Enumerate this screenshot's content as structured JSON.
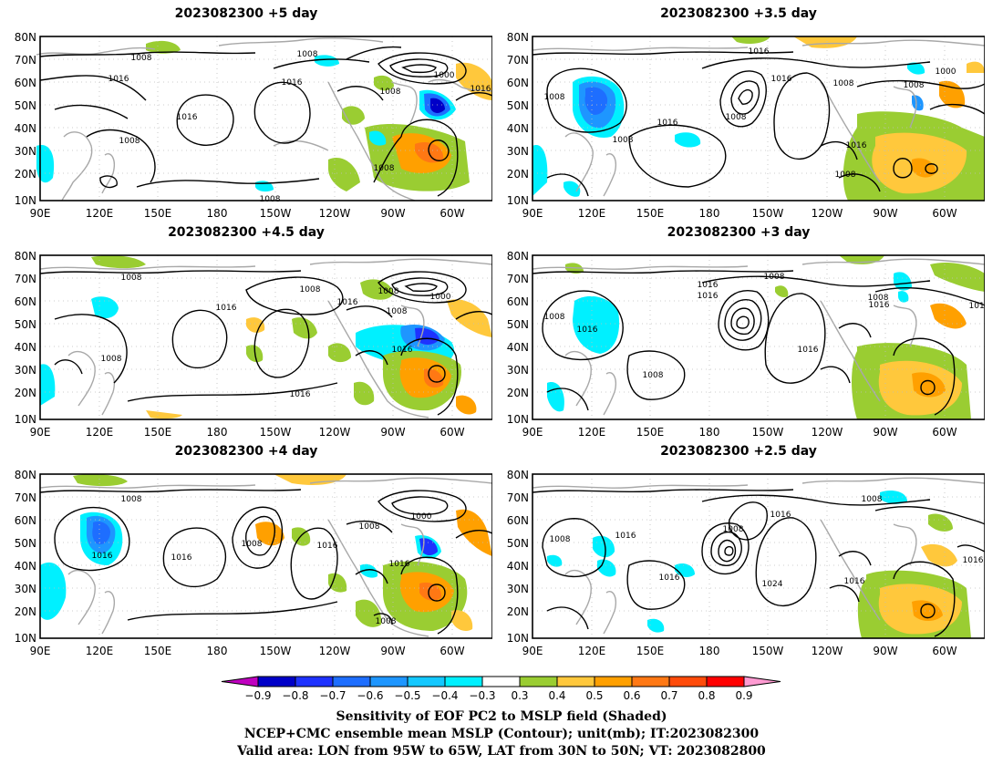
{
  "panels": [
    {
      "title": "2023082300  +5 day"
    },
    {
      "title": "2023082300  +3.5 day"
    },
    {
      "title": "2023082300  +4.5 day"
    },
    {
      "title": "2023082300  +3 day"
    },
    {
      "title": "2023082300  +4 day"
    },
    {
      "title": "2023082300  +2.5 day"
    }
  ],
  "axes": {
    "lat_labels": [
      "80N",
      "70N",
      "60N",
      "50N",
      "40N",
      "30N",
      "20N",
      "10N"
    ],
    "lon_labels": [
      "90E",
      "120E",
      "150E",
      "180",
      "150W",
      "120W",
      "90W",
      "60W"
    ]
  },
  "contour_labels": {
    "p0": [
      "1008",
      "1016",
      "1016",
      "1016",
      "1008",
      "1008",
      "1000",
      "1016",
      "1008",
      "1008",
      "1008"
    ],
    "p1": [
      "1016",
      "1000",
      "1008",
      "1016",
      "1008",
      "1008",
      "1008",
      "1016",
      "1016",
      "1008",
      "1008"
    ],
    "p2": [
      "1008",
      "1008",
      "1016",
      "1008",
      "1000",
      "1008",
      "1016",
      "1016",
      "1016",
      "1008"
    ],
    "p3": [
      "1008",
      "1016",
      "1016",
      "1008",
      "1016",
      "1016",
      "1008",
      "1016",
      "101",
      "1016",
      "1008"
    ],
    "p4": [
      "1008",
      "1000",
      "1016",
      "1016",
      "1016",
      "1008",
      "1008",
      "1016",
      "1016",
      "1008",
      "1008"
    ],
    "p5": [
      "1008",
      "1008",
      "1016",
      "1016",
      "1008",
      "1016",
      "1016",
      "1024",
      "1016",
      "1016",
      "1016"
    ]
  },
  "colorbar": {
    "tick_labels": [
      "−0.9",
      "−0.8",
      "−0.7",
      "−0.6",
      "−0.5",
      "−0.4",
      "−0.3",
      "0.3",
      "0.4",
      "0.5",
      "0.6",
      "0.7",
      "0.8",
      "0.9"
    ],
    "colors": [
      "#c000c0",
      "#0000c8",
      "#1e32ff",
      "#1e6eff",
      "#1e96ff",
      "#14c8ff",
      "#00f0ff",
      "#ffffff",
      "#9acd32",
      "#ffc83c",
      "#ffa000",
      "#ff7814",
      "#ff4b0a",
      "#ff0000",
      "#ff9bd2"
    ]
  },
  "caption": {
    "line1": "Sensitivity of EOF PC2 to MSLP field (Shaded)",
    "line2": "NCEP+CMC ensemble mean MSLP (Contour); unit(mb); IT:2023082300",
    "line3": "Valid area: LON from 95W to 65W, LAT from 30N to 50N; VT: 2023082800"
  }
}
